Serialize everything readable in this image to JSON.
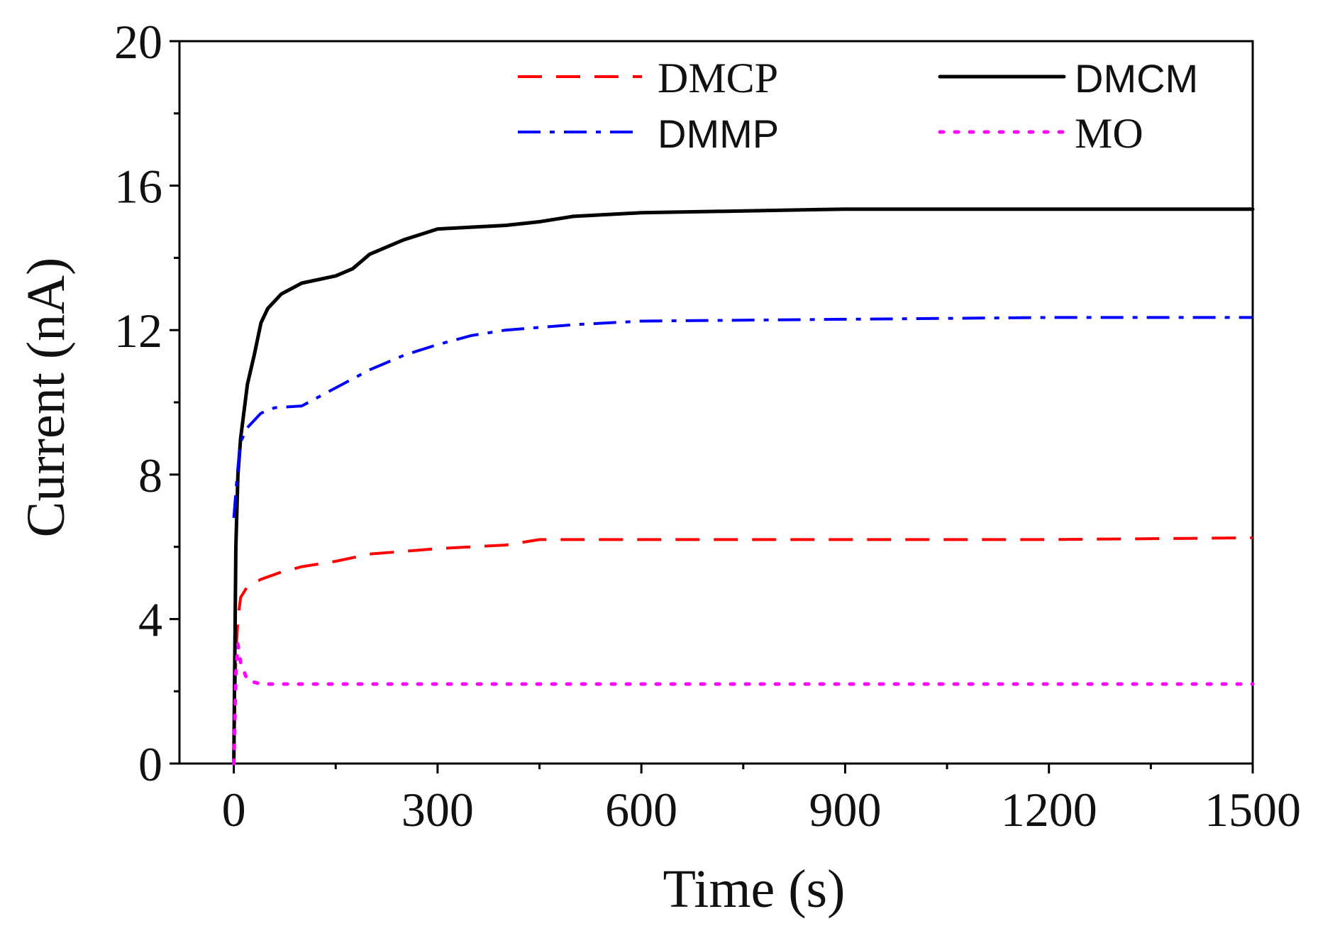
{
  "chart_data": {
    "type": "line",
    "xlabel": "Time (s)",
    "ylabel": "Current (nA)",
    "xlim": [
      -80,
      1500
    ],
    "ylim": [
      0,
      20
    ],
    "xticks": [
      0,
      300,
      600,
      900,
      1200,
      1500
    ],
    "xtick_labels": [
      "0",
      "300",
      "600",
      "900",
      "1200",
      "1500"
    ],
    "yticks": [
      0,
      4,
      8,
      12,
      16,
      20
    ],
    "ytick_labels": [
      "0",
      "4",
      "8",
      "12",
      "16",
      "20"
    ],
    "grid": false,
    "legend_position": "top-right",
    "series": [
      {
        "name": "DMCP",
        "color": "#ff0000",
        "style": "dashed",
        "x": [
          0,
          3,
          6,
          10,
          20,
          40,
          70,
          100,
          150,
          200,
          300,
          400,
          450,
          600,
          900,
          1200,
          1500
        ],
        "y": [
          0,
          3.0,
          4.0,
          4.6,
          4.9,
          5.1,
          5.3,
          5.45,
          5.6,
          5.8,
          5.95,
          6.05,
          6.2,
          6.2,
          6.2,
          6.2,
          6.25
        ]
      },
      {
        "name": "DMCM",
        "color": "#000000",
        "style": "solid",
        "x": [
          0,
          3,
          6,
          10,
          20,
          30,
          40,
          50,
          70,
          100,
          150,
          175,
          200,
          250,
          300,
          350,
          400,
          450,
          500,
          600,
          900,
          1200,
          1500
        ],
        "y": [
          0,
          6.0,
          8.0,
          9.0,
          10.5,
          11.3,
          12.2,
          12.6,
          13.0,
          13.3,
          13.5,
          13.7,
          14.1,
          14.5,
          14.8,
          14.85,
          14.9,
          15.0,
          15.15,
          15.25,
          15.35,
          15.35,
          15.35
        ]
      },
      {
        "name": "DMMP",
        "color": "#0000ff",
        "style": "dashdot",
        "x": [
          0,
          5,
          10,
          20,
          40,
          60,
          100,
          150,
          200,
          250,
          300,
          350,
          400,
          500,
          600,
          900,
          1200,
          1500
        ],
        "y": [
          6.8,
          8.0,
          8.9,
          9.3,
          9.7,
          9.85,
          9.9,
          10.4,
          10.9,
          11.3,
          11.6,
          11.85,
          12.0,
          12.15,
          12.25,
          12.3,
          12.35,
          12.35
        ]
      },
      {
        "name": "MO",
        "color": "#ff00ff",
        "style": "dotted",
        "x": [
          0,
          3,
          6,
          10,
          20,
          40,
          100,
          300,
          600,
          900,
          1200,
          1500
        ],
        "y": [
          0,
          2.5,
          3.3,
          2.8,
          2.3,
          2.2,
          2.2,
          2.2,
          2.2,
          2.2,
          2.2,
          2.2
        ]
      }
    ]
  }
}
